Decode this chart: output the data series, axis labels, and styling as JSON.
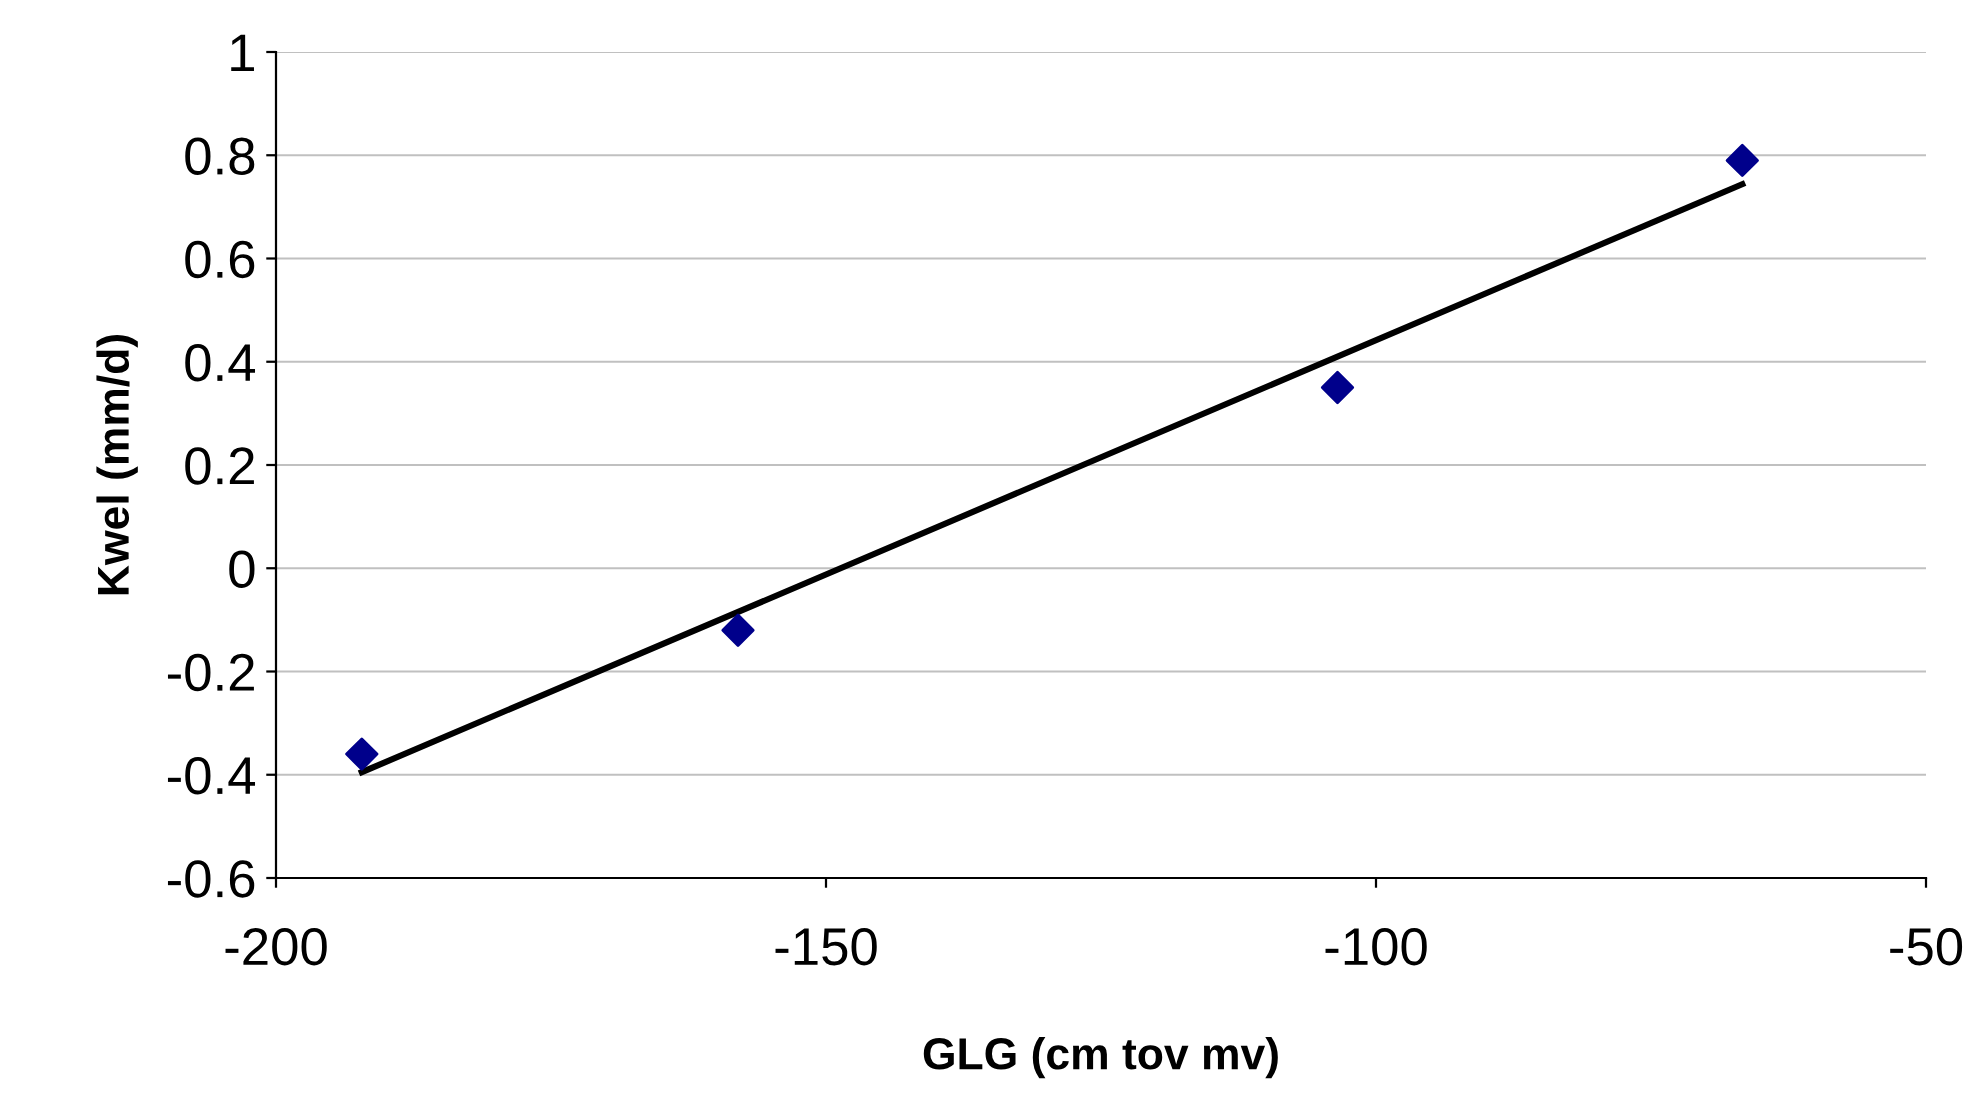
{
  "chart_data": {
    "type": "scatter",
    "xlabel": "GLG (cm tov mv)",
    "ylabel": "Kwel (mm/d)",
    "xlim": [
      -200,
      -50
    ],
    "xticks": [
      -200,
      -150,
      -100,
      -50
    ],
    "ylim": [
      -0.6,
      1
    ],
    "yticks": [
      -0.6,
      -0.4,
      -0.2,
      0,
      0.2,
      0.4,
      0.6,
      0.8,
      1
    ],
    "grid": "y",
    "legend": false,
    "series": [
      {
        "type": "scatter",
        "color": "#00008b",
        "marker": "diamond",
        "x": [
          -192.2,
          -158,
          -103.5,
          -66.7
        ],
        "values": [
          -0.36,
          -0.12,
          0.35,
          0.79
        ]
      },
      {
        "type": "line",
        "color": "#000000",
        "marker": "none",
        "line_style": "solid",
        "x": [
          -192.2,
          -66.7
        ],
        "values": [
          -0.395,
          0.744
        ]
      }
    ]
  }
}
